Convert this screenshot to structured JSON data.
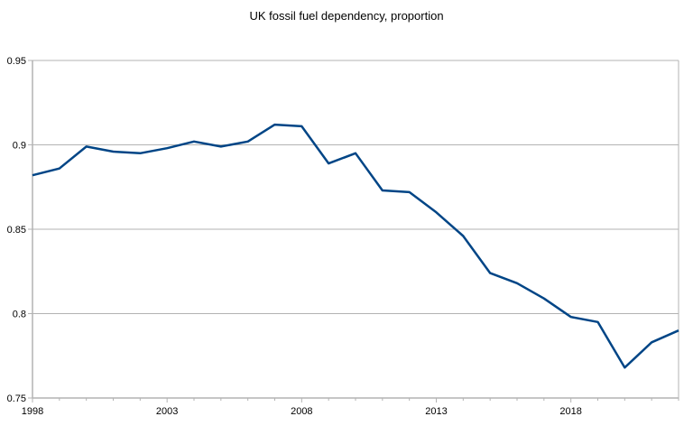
{
  "chart_data": {
    "type": "line",
    "title": "UK fossil fuel dependency, proportion",
    "xlabel": "",
    "ylabel": "",
    "x": [
      1998,
      1999,
      2000,
      2001,
      2002,
      2003,
      2004,
      2005,
      2006,
      2007,
      2008,
      2009,
      2010,
      2011,
      2012,
      2013,
      2014,
      2015,
      2016,
      2017,
      2018,
      2019,
      2020,
      2021,
      2022
    ],
    "values": [
      0.882,
      0.886,
      0.899,
      0.896,
      0.895,
      0.898,
      0.902,
      0.899,
      0.902,
      0.912,
      0.911,
      0.889,
      0.895,
      0.873,
      0.872,
      0.86,
      0.846,
      0.824,
      0.818,
      0.809,
      0.798,
      0.795,
      0.768,
      0.783,
      0.79
    ],
    "xlim": [
      1998,
      2022
    ],
    "ylim": [
      0.75,
      0.95
    ],
    "xticks": [
      "1998",
      "2003",
      "2008",
      "2013",
      "2018"
    ],
    "yticks": [
      "0.75",
      "0.8",
      "0.85",
      "0.9",
      "0.95"
    ],
    "grid": true,
    "legend": "none",
    "line_color": "#004586",
    "grid_color": "#b3b3b3"
  }
}
